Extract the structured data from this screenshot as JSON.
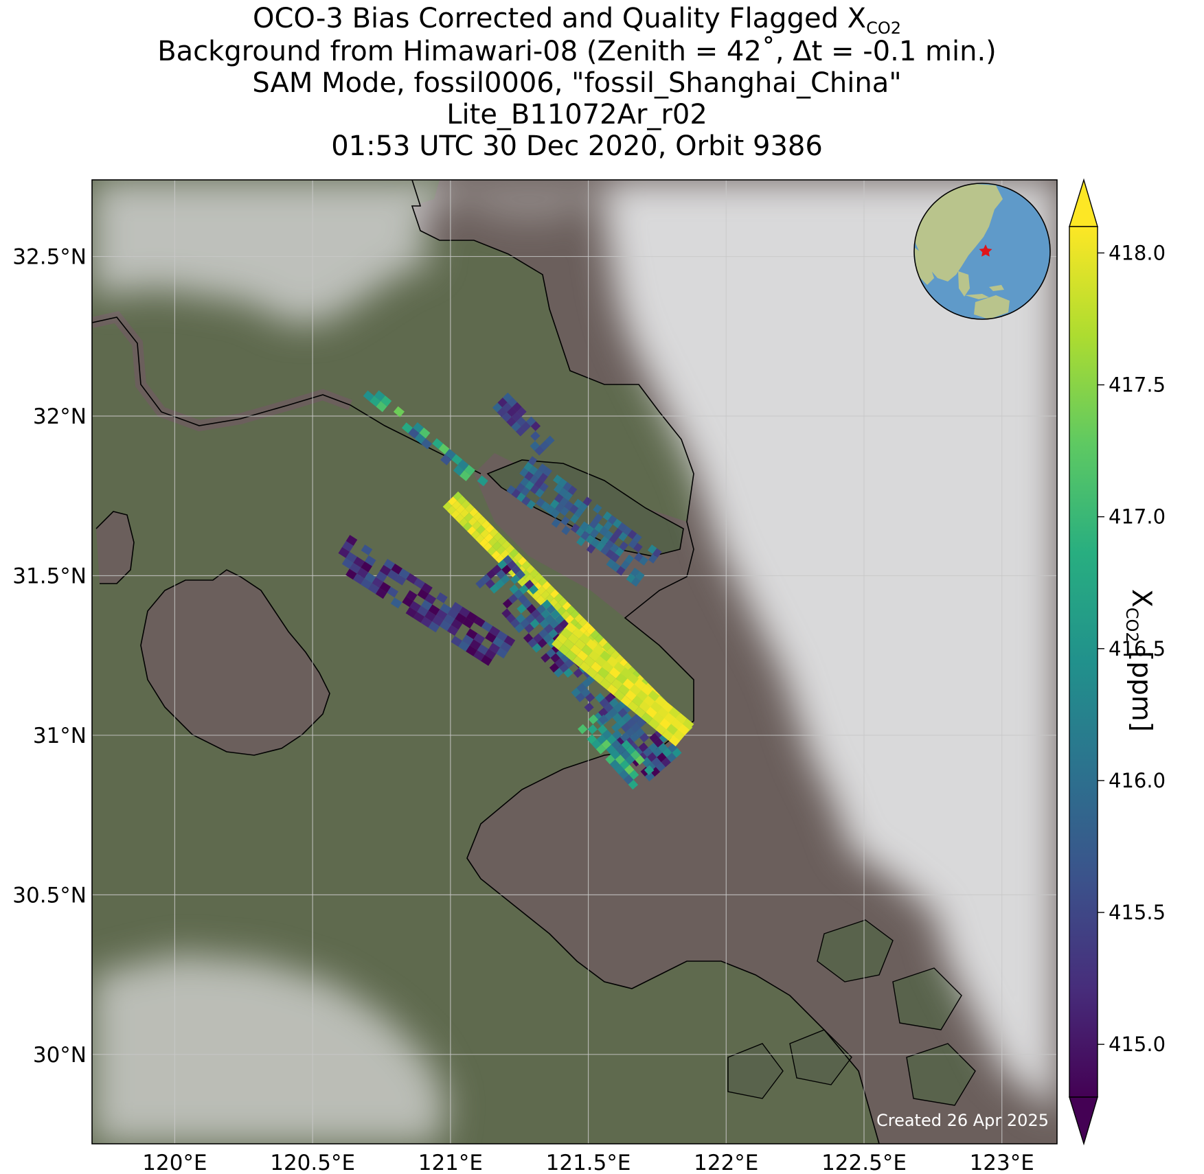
{
  "title": {
    "line1_prefix": "OCO-3 Bias Corrected and Quality Flagged X",
    "line1_sub": "CO2",
    "line2": "Background from Himawari-08 (Zenith = 42˚, Δt = -0.1 min.)",
    "line3": "SAM Mode, fossil0006, \"fossil_Shanghai_China\"",
    "line4": "Lite_B11072Ar_r02",
    "line5": "01:53 UTC 30 Dec 2020, Orbit 9386"
  },
  "map": {
    "lon_range": [
      119.7,
      123.2
    ],
    "lat_range": [
      29.72,
      32.74
    ],
    "lon_ticks": [
      {
        "value": 120.0,
        "label": "120°E"
      },
      {
        "value": 120.5,
        "label": "120.5°E"
      },
      {
        "value": 121.0,
        "label": "121°E"
      },
      {
        "value": 121.5,
        "label": "121.5°E"
      },
      {
        "value": 122.0,
        "label": "122°E"
      },
      {
        "value": 122.5,
        "label": "122.5°E"
      },
      {
        "value": 123.0,
        "label": "123°E"
      }
    ],
    "lat_ticks": [
      {
        "value": 30.0,
        "label": "30°N"
      },
      {
        "value": 30.5,
        "label": "30.5°N"
      },
      {
        "value": 31.0,
        "label": "31°N"
      },
      {
        "value": 31.5,
        "label": "31.5°N"
      },
      {
        "value": 32.0,
        "label": "32°N"
      },
      {
        "value": 32.5,
        "label": "32.5°N"
      }
    ],
    "colors": {
      "land": "#5f6a4e",
      "land_dark": "#4f5d40",
      "water": "#6b5f5c",
      "cloud": "#d9d9da",
      "coastline": "#000000",
      "grid": "#c8c8c8"
    },
    "inset_globe": {
      "icon": "globe-icon",
      "ocean": "#5f9ac9",
      "land": "#b9c48c",
      "marker": "#e0141a",
      "marker_lon": 121.5,
      "marker_lat": 31.2
    },
    "created_text": "Created 26 Apr 2025"
  },
  "colorbar": {
    "cmap": "viridis",
    "vmin": 414.8,
    "vmax": 418.1,
    "extend": "both",
    "ticks": [
      {
        "value": 415.0,
        "label": "415.0"
      },
      {
        "value": 415.5,
        "label": "415.5"
      },
      {
        "value": 416.0,
        "label": "416.0"
      },
      {
        "value": 416.5,
        "label": "416.5"
      },
      {
        "value": 417.0,
        "label": "417.0"
      },
      {
        "value": 417.5,
        "label": "417.5"
      },
      {
        "value": 418.0,
        "label": "418.0"
      }
    ],
    "label_prefix": "X",
    "label_sub": "CO2",
    "label_suffix": " [ppm]"
  },
  "soundings": {
    "swaths": [
      {
        "start_lon": 121.0,
        "start_lat": 31.74,
        "end_lon": 121.85,
        "end_lat": 31.0,
        "width_cells": 3,
        "length_cells": 58,
        "base_value": 417.9,
        "spread": 0.25
      },
      {
        "start_lon": 121.15,
        "start_lat": 31.52,
        "end_lon": 121.78,
        "end_lat": 30.9,
        "width_cells": 6,
        "length_cells": 40,
        "base_value": 415.6,
        "spread": 0.9
      },
      {
        "start_lon": 121.25,
        "start_lat": 31.82,
        "end_lon": 121.72,
        "end_lat": 31.52,
        "width_cells": 6,
        "length_cells": 26,
        "base_value": 415.8,
        "spread": 0.5
      },
      {
        "start_lon": 121.18,
        "start_lat": 32.05,
        "end_lon": 121.35,
        "end_lat": 31.9,
        "width_cells": 3,
        "length_cells": 10,
        "base_value": 415.5,
        "spread": 0.4
      },
      {
        "start_lon": 120.7,
        "start_lat": 32.08,
        "end_lon": 121.12,
        "end_lat": 31.78,
        "width_cells": 2,
        "length_cells": 18,
        "base_value": 416.5,
        "spread": 0.9
      },
      {
        "start_lon": 120.6,
        "start_lat": 31.58,
        "end_lon": 121.2,
        "end_lat": 31.25,
        "width_cells": 5,
        "length_cells": 22,
        "base_value": 415.2,
        "spread": 0.6
      },
      {
        "start_lon": 121.4,
        "start_lat": 31.32,
        "end_lon": 121.85,
        "end_lat": 31.0,
        "width_cells": 4,
        "length_cells": 18,
        "base_value": 417.9,
        "spread": 0.2
      },
      {
        "start_lon": 121.5,
        "start_lat": 31.05,
        "end_lon": 121.7,
        "end_lat": 30.86,
        "width_cells": 4,
        "length_cells": 12,
        "base_value": 416.6,
        "spread": 0.8
      }
    ]
  }
}
